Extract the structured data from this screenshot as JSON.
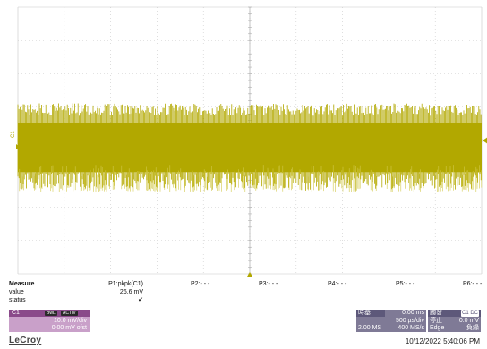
{
  "window": {
    "title": ""
  },
  "display": {
    "background": "#ffffff",
    "grid_color": "#c8c8c8",
    "trace_color": "#b2a800",
    "trace_color_light": "#d2c94a",
    "divisions_x": 10,
    "divisions_y": 8
  },
  "trace": {
    "channel_label": "C1",
    "volts_per_div_mv": 10.0,
    "offset_mv": 0.0,
    "pkpk_mv": 26.6,
    "timebase_us_per_div": 500
  },
  "measure": {
    "title": "Measure",
    "row_value_label": "value",
    "row_status_label": "status",
    "params": [
      {
        "name": "P1:pkpk(C1)",
        "value": "26.6 mV",
        "status": "✔"
      },
      {
        "name": "P2:- - -",
        "value": "",
        "status": ""
      },
      {
        "name": "P3:- - -",
        "value": "",
        "status": ""
      },
      {
        "name": "P4:- - -",
        "value": "",
        "status": ""
      },
      {
        "name": "P5:- - -",
        "value": "",
        "status": ""
      },
      {
        "name": "P6:- - -",
        "value": "",
        "status": ""
      }
    ]
  },
  "channel_box": {
    "name": "C1",
    "tags": [
      "BwL",
      "ACTIV"
    ],
    "scale": "10.0 mV/div",
    "offset": "0.00 mV ofst",
    "color": "#c9a0c9"
  },
  "timebase": {
    "title": "時基",
    "delay": "0.00 ms",
    "per_div": "500 µs/div",
    "samples": "2.00 MS",
    "rate": "400 MS/s"
  },
  "trigger": {
    "title": "觸發",
    "source": "C1 DC",
    "mode": "停止",
    "level": "0.0 mV",
    "type": "Edge",
    "slope": "負緣"
  },
  "brand": "LeCroy",
  "timestamp": "10/12/2022 5:40:06 PM"
}
